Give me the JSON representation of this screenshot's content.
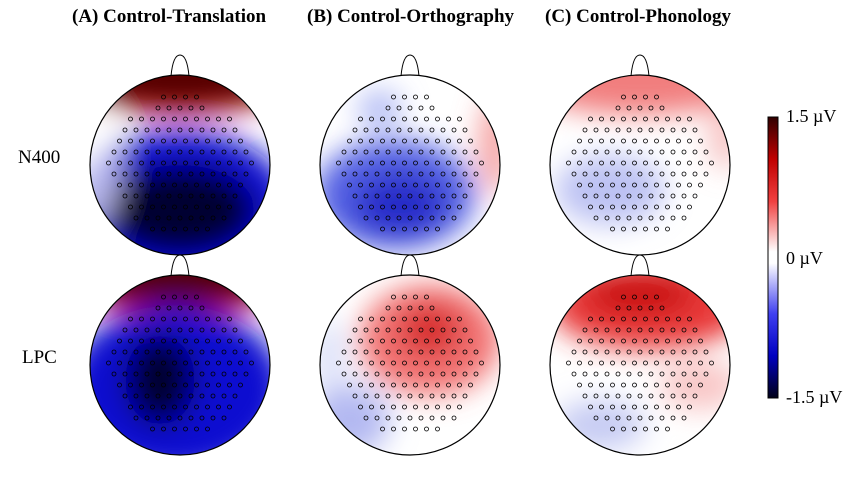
{
  "chart_data": {
    "type": "heatmap",
    "subtype": "scalp-topography",
    "columns": [
      {
        "label": "(A) Control-Translation"
      },
      {
        "label": "(B) Control-Orthography"
      },
      {
        "label": "(C) Control-Phonology"
      }
    ],
    "rows": [
      {
        "label": "N400"
      },
      {
        "label": "LPC"
      }
    ],
    "colorbar": {
      "max_label": "1.5 µV",
      "mid_label": "0 µV",
      "min_label": "-1.5 µV",
      "range": [
        -1.5,
        1.5
      ],
      "unit": "µV",
      "colors": {
        "min": "#000018",
        "neg": "#1010e0",
        "zero": "#ffffff",
        "pos": "#e01010",
        "max": "#300000"
      }
    }
  }
}
